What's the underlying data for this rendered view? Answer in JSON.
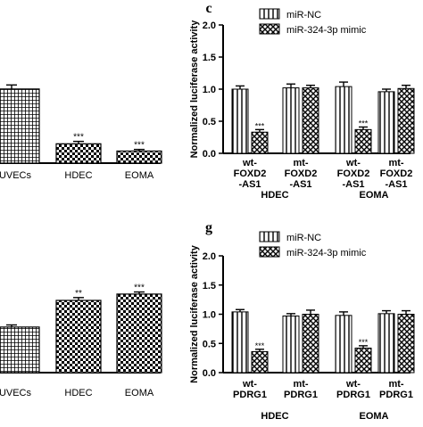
{
  "chart_data": [
    {
      "id": "top-left",
      "type": "bar",
      "categories": [
        "HUVECs",
        "HDEC",
        "EOMA"
      ],
      "values": [
        0.92,
        0.24,
        0.15
      ],
      "errors": [
        0.05,
        0.03,
        0.02
      ],
      "significance": [
        "",
        "***",
        "***"
      ],
      "patterns": [
        "grid",
        "checker",
        "checker"
      ],
      "ylim": [
        0,
        1.25
      ]
    },
    {
      "id": "panel-c",
      "type": "bar",
      "panel_letter": "c",
      "ylabel": "Normalized luciferase activity",
      "yticks": [
        "0.0",
        "0.5",
        "1.0",
        "1.5",
        "2.0"
      ],
      "ylim": [
        0,
        2.0
      ],
      "legend": [
        "miR-NC",
        "miR-324-3p mimic"
      ],
      "groups": [
        {
          "label": [
            "wt-",
            "FOXD2",
            "-AS1"
          ],
          "values": [
            1.0,
            0.33
          ],
          "errors": [
            0.05,
            0.04
          ],
          "significance": [
            "",
            "***"
          ]
        },
        {
          "label": [
            "mt-",
            "FOXD2",
            "-AS1"
          ],
          "values": [
            1.02,
            1.02
          ],
          "errors": [
            0.06,
            0.04
          ],
          "significance": [
            "",
            ""
          ]
        },
        {
          "label": [
            "wt-",
            "FOXD2",
            "-AS1"
          ],
          "values": [
            1.04,
            0.37
          ],
          "errors": [
            0.07,
            0.04
          ],
          "significance": [
            "",
            "***"
          ]
        },
        {
          "label": [
            "mt-",
            "FOXD2",
            "-AS1"
          ],
          "values": [
            0.96,
            1.01
          ],
          "errors": [
            0.04,
            0.05
          ],
          "significance": [
            "",
            ""
          ]
        }
      ],
      "cell_lines": [
        "HDEC",
        "EOMA"
      ],
      "series": [
        {
          "name": "miR-NC",
          "values": [
            1.0,
            1.02,
            1.04,
            0.96
          ]
        },
        {
          "name": "miR-324-3p mimic",
          "values": [
            0.33,
            1.02,
            0.37,
            1.01
          ]
        }
      ]
    },
    {
      "id": "bottom-left",
      "type": "bar",
      "categories": [
        "HUVECs",
        "HDEC",
        "EOMA"
      ],
      "values": [
        0.65,
        1.03,
        1.12
      ],
      "errors": [
        0.03,
        0.04,
        0.03
      ],
      "significance": [
        "",
        "**",
        "***"
      ],
      "patterns": [
        "grid",
        "checker",
        "checker"
      ],
      "ylim": [
        0,
        1.5
      ]
    },
    {
      "id": "panel-g",
      "type": "bar",
      "panel_letter": "g",
      "ylabel": "Normalized luciferase activity",
      "yticks": [
        "0.0",
        "0.5",
        "1.0",
        "1.5",
        "2.0"
      ],
      "ylim": [
        0,
        2.0
      ],
      "legend": [
        "miR-NC",
        "miR-324-3p mimic"
      ],
      "groups": [
        {
          "label": [
            "wt-",
            "PDRG1"
          ],
          "values": [
            1.04,
            0.36
          ],
          "errors": [
            0.04,
            0.04
          ],
          "significance": [
            "",
            "***"
          ]
        },
        {
          "label": [
            "mt-",
            "PDRG1"
          ],
          "values": [
            0.97,
            1.0
          ],
          "errors": [
            0.04,
            0.07
          ],
          "significance": [
            "",
            ""
          ]
        },
        {
          "label": [
            "wt-",
            "PDRG1"
          ],
          "values": [
            0.98,
            0.42
          ],
          "errors": [
            0.06,
            0.04
          ],
          "significance": [
            "",
            "***"
          ]
        },
        {
          "label": [
            "mt-",
            "PDRG1"
          ],
          "values": [
            1.01,
            1.0
          ],
          "errors": [
            0.05,
            0.06
          ],
          "significance": [
            "",
            ""
          ]
        }
      ],
      "cell_lines": [
        "HDEC",
        "EOMA"
      ],
      "series": [
        {
          "name": "miR-NC",
          "values": [
            1.04,
            0.97,
            0.98,
            1.01
          ]
        },
        {
          "name": "miR-324-3p mimic",
          "values": [
            0.36,
            1.0,
            0.42,
            1.0
          ]
        }
      ]
    }
  ]
}
